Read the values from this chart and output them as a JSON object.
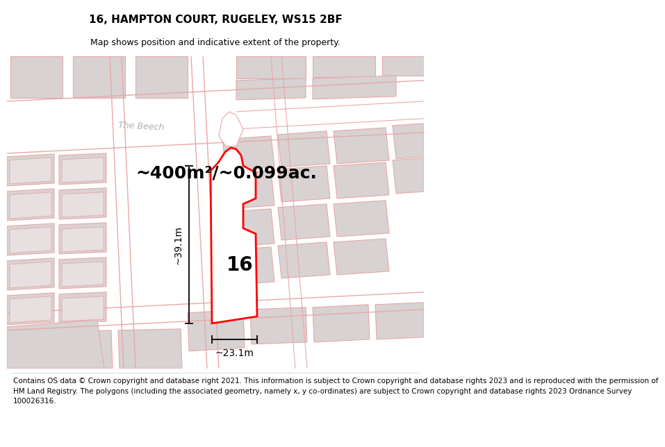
{
  "title": "16, HAMPTON COURT, RUGELEY, WS15 2BF",
  "subtitle": "Map shows position and indicative extent of the property.",
  "area_text": "~400m²/~0.099ac.",
  "label_number": "16",
  "dim_horizontal": "~23.1m",
  "dim_vertical": "~39.1m",
  "street_name": "The Beech",
  "footer_line1": "Contains OS data © Crown copyright and database right 2021. This information is subject to Crown copyright and database rights 2023 and is reproduced with the permission of",
  "footer_line2": "HM Land Registry. The polygons (including the associated geometry, namely x, y co-ordinates) are subject to Crown copyright and database rights 2023 Ordnance Survey",
  "footer_line3": "100026316.",
  "map_bg": "#f5f0f0",
  "road_fill": "#ffffff",
  "plot_color": "#ff0000",
  "building_fill": "#d8d2d2",
  "building_edge": "#e8a8a8",
  "road_edge": "#e8a8a8",
  "title_fontsize": 11,
  "subtitle_fontsize": 9,
  "area_fontsize": 18,
  "number_fontsize": 20,
  "dim_fontsize": 10,
  "footer_fontsize": 7.5,
  "street_fontsize": 9
}
